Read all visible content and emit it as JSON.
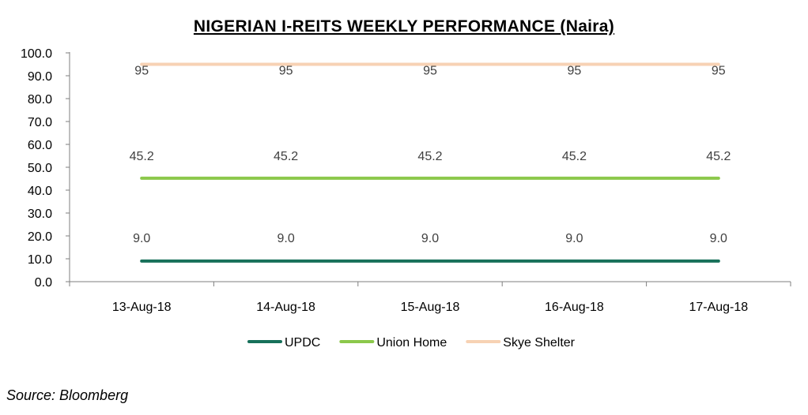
{
  "chart_data": {
    "type": "line",
    "title": "NIGERIAN  I-REITS  WEEKLY  PERFORMANCE  (Naira)",
    "categories": [
      "13-Aug-18",
      "14-Aug-18",
      "15-Aug-18",
      "16-Aug-18",
      "17-Aug-18"
    ],
    "ylim": [
      0,
      100
    ],
    "yticks": [
      "0.0",
      "10.0",
      "20.0",
      "30.0",
      "40.0",
      "50.0",
      "60.0",
      "70.0",
      "80.0",
      "90.0",
      "100.0"
    ],
    "grid": false,
    "legend_position": "bottom",
    "series": [
      {
        "name": "UPDC",
        "color": "#17705a",
        "values": [
          9.0,
          9.0,
          9.0,
          9.0,
          9.0
        ],
        "labels": [
          "9.0",
          "9.0",
          "9.0",
          "9.0",
          "9.0"
        ]
      },
      {
        "name": "Union Home",
        "color": "#8cc84b",
        "values": [
          45.2,
          45.2,
          45.2,
          45.2,
          45.2
        ],
        "labels": [
          "45.2",
          "45.2",
          "45.2",
          "45.2",
          "45.2"
        ]
      },
      {
        "name": "Skye Shelter",
        "color": "#f7d2b4",
        "values": [
          95,
          95,
          95,
          95,
          95
        ],
        "labels": [
          "95",
          "95",
          "95",
          "95",
          "95"
        ]
      }
    ]
  },
  "source": "Source: Bloomberg"
}
